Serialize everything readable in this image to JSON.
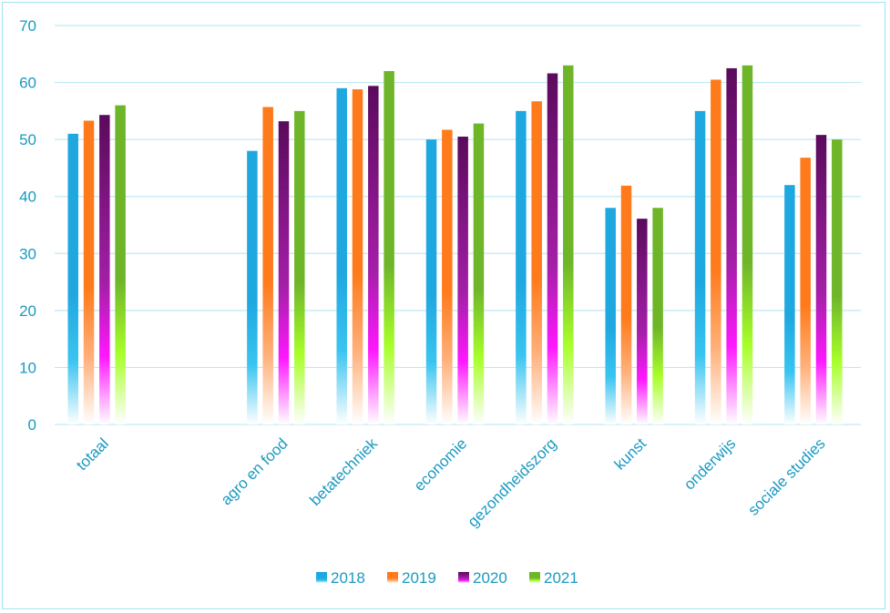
{
  "chart_data": {
    "type": "bar",
    "title": "",
    "xlabel": "",
    "ylabel": "",
    "ylim": [
      0,
      70
    ],
    "yticks": [
      0,
      10,
      20,
      30,
      40,
      50,
      60,
      70
    ],
    "grid": true,
    "legend_position": "bottom",
    "categories": [
      "totaal",
      "",
      "agro en food",
      "betatechniek",
      "economie",
      "gezondheidszorg",
      "kunst",
      "onderwijs",
      "sociale studies"
    ],
    "series": [
      {
        "name": "2018",
        "color": "#1fa8e0",
        "values": [
          51,
          null,
          48,
          59,
          50,
          55,
          38,
          55,
          42
        ]
      },
      {
        "name": "2019",
        "color": "#ff7a1a",
        "values": [
          53.3,
          null,
          55.7,
          58.8,
          51.7,
          56.7,
          41.9,
          60.5,
          46.8
        ]
      },
      {
        "name": "2020",
        "color": "#5a0a5c",
        "values": [
          54.3,
          null,
          53.2,
          59.4,
          50.5,
          61.6,
          36.1,
          62.5,
          50.8
        ]
      },
      {
        "name": "2021",
        "color": "#6fb52a",
        "values": [
          56,
          null,
          55,
          62,
          52.8,
          63,
          38,
          63,
          50
        ]
      }
    ]
  }
}
